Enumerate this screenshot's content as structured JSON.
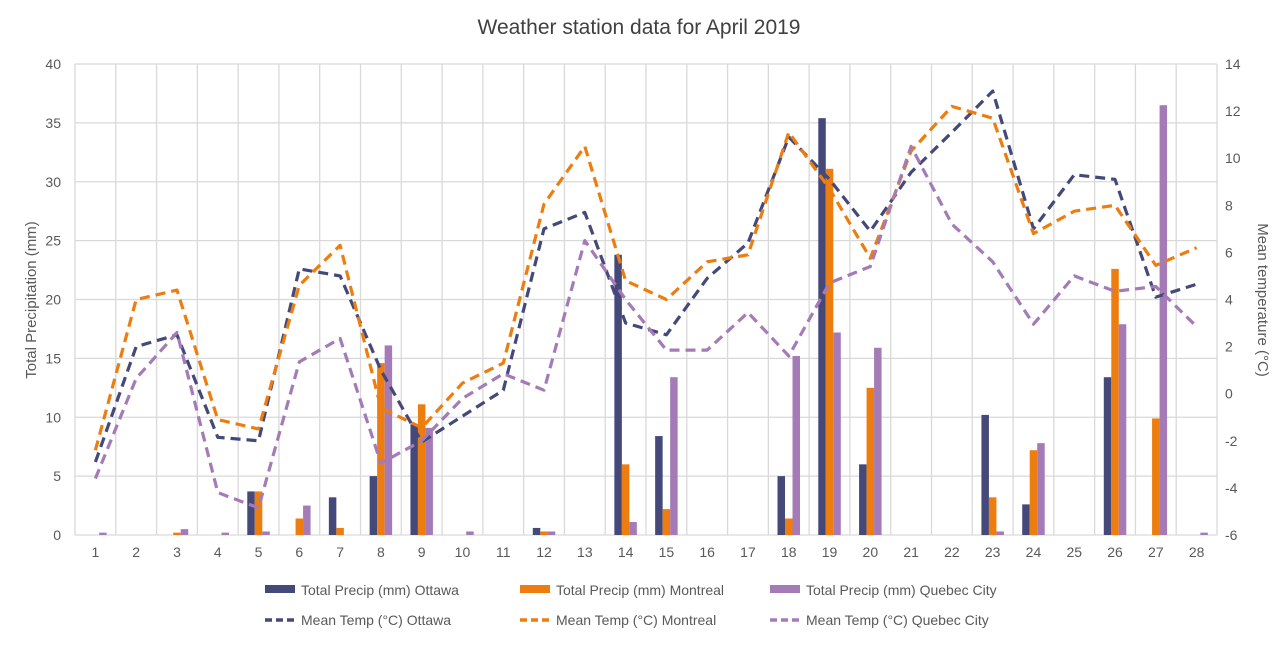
{
  "chart_data": {
    "type": "bar+line",
    "title": "Weather station data for April 2019",
    "xlabel": "",
    "ylabel": "Total Precipitation (mm)",
    "y2label": "Mean temperature (°C)",
    "ylim": [
      0,
      40
    ],
    "y2lim": [
      -6,
      14
    ],
    "yticks": [
      0,
      5,
      10,
      15,
      20,
      25,
      30,
      35,
      40
    ],
    "y2ticks": [
      -6,
      -4,
      -2,
      0,
      2,
      4,
      6,
      8,
      10,
      12,
      14
    ],
    "grid": true,
    "legend_placement": "bottom",
    "categories": [
      "1",
      "2",
      "3",
      "4",
      "5",
      "6",
      "7",
      "8",
      "9",
      "10",
      "11",
      "12",
      "13",
      "14",
      "15",
      "16",
      "17",
      "18",
      "19",
      "20",
      "21",
      "22",
      "23",
      "24",
      "25",
      "26",
      "27",
      "28"
    ],
    "bar_series": [
      {
        "name": "Total Precip (mm) Ottawa",
        "color": "#44497A",
        "values": [
          0,
          0,
          0,
          0,
          3.7,
          0,
          3.2,
          5.0,
          9.4,
          0,
          0,
          0.6,
          0,
          23.8,
          8.4,
          0,
          0,
          5.0,
          35.4,
          6.0,
          0,
          0,
          10.2,
          2.6,
          0,
          13.4,
          0,
          0
        ]
      },
      {
        "name": "Total Precip (mm) Montreal",
        "color": "#ED7D0F",
        "values": [
          0,
          0,
          0.2,
          0,
          3.7,
          1.4,
          0.6,
          14.6,
          11.1,
          0,
          0,
          0.3,
          0,
          6.0,
          2.2,
          0,
          0,
          1.4,
          31.1,
          12.5,
          0,
          0,
          3.2,
          7.2,
          0,
          22.6,
          9.9,
          0
        ]
      },
      {
        "name": "Total Precip (mm) Quebec City",
        "color": "#A57BB7",
        "values": [
          0.2,
          0,
          0.5,
          0.2,
          0.3,
          2.5,
          0,
          16.1,
          9.1,
          0.3,
          0,
          0.3,
          0,
          1.1,
          13.4,
          0,
          0,
          15.2,
          17.2,
          15.9,
          0,
          0,
          0.3,
          7.8,
          0,
          17.9,
          36.5,
          0.2
        ]
      }
    ],
    "line_series": [
      {
        "name": "Mean Temp (°C) Ottawa",
        "color": "#44497A",
        "values": [
          -2.9,
          2.0,
          2.5,
          -1.85,
          -2.0,
          5.3,
          5.0,
          1.0,
          -2.05,
          -0.95,
          0.15,
          7.0,
          7.7,
          3.0,
          2.5,
          4.9,
          6.4,
          10.9,
          9.1,
          6.9,
          9.4,
          11.1,
          12.85,
          7.0,
          9.3,
          9.1,
          4.1,
          4.65
        ]
      },
      {
        "name": "Mean Temp (°C) Montreal",
        "color": "#ED7D0F",
        "values": [
          -2.4,
          4.0,
          4.4,
          -1.1,
          -1.5,
          4.6,
          6.3,
          -0.6,
          -1.45,
          0.45,
          1.3,
          8.05,
          10.5,
          4.8,
          4.0,
          5.6,
          5.9,
          11.1,
          8.7,
          5.75,
          10.3,
          12.2,
          11.7,
          6.8,
          7.75,
          8.0,
          5.45,
          6.2
        ]
      },
      {
        "name": "Mean Temp (°C) Quebec City",
        "color": "#A57BB7",
        "values": [
          -3.6,
          0.65,
          2.6,
          -4.2,
          -4.85,
          1.35,
          2.35,
          -2.95,
          -2.0,
          -0.2,
          0.85,
          0.15,
          6.5,
          4.0,
          1.85,
          1.85,
          3.45,
          1.6,
          4.7,
          5.4,
          10.5,
          7.2,
          5.6,
          2.95,
          5.0,
          4.35,
          4.55,
          2.85
        ]
      }
    ]
  }
}
